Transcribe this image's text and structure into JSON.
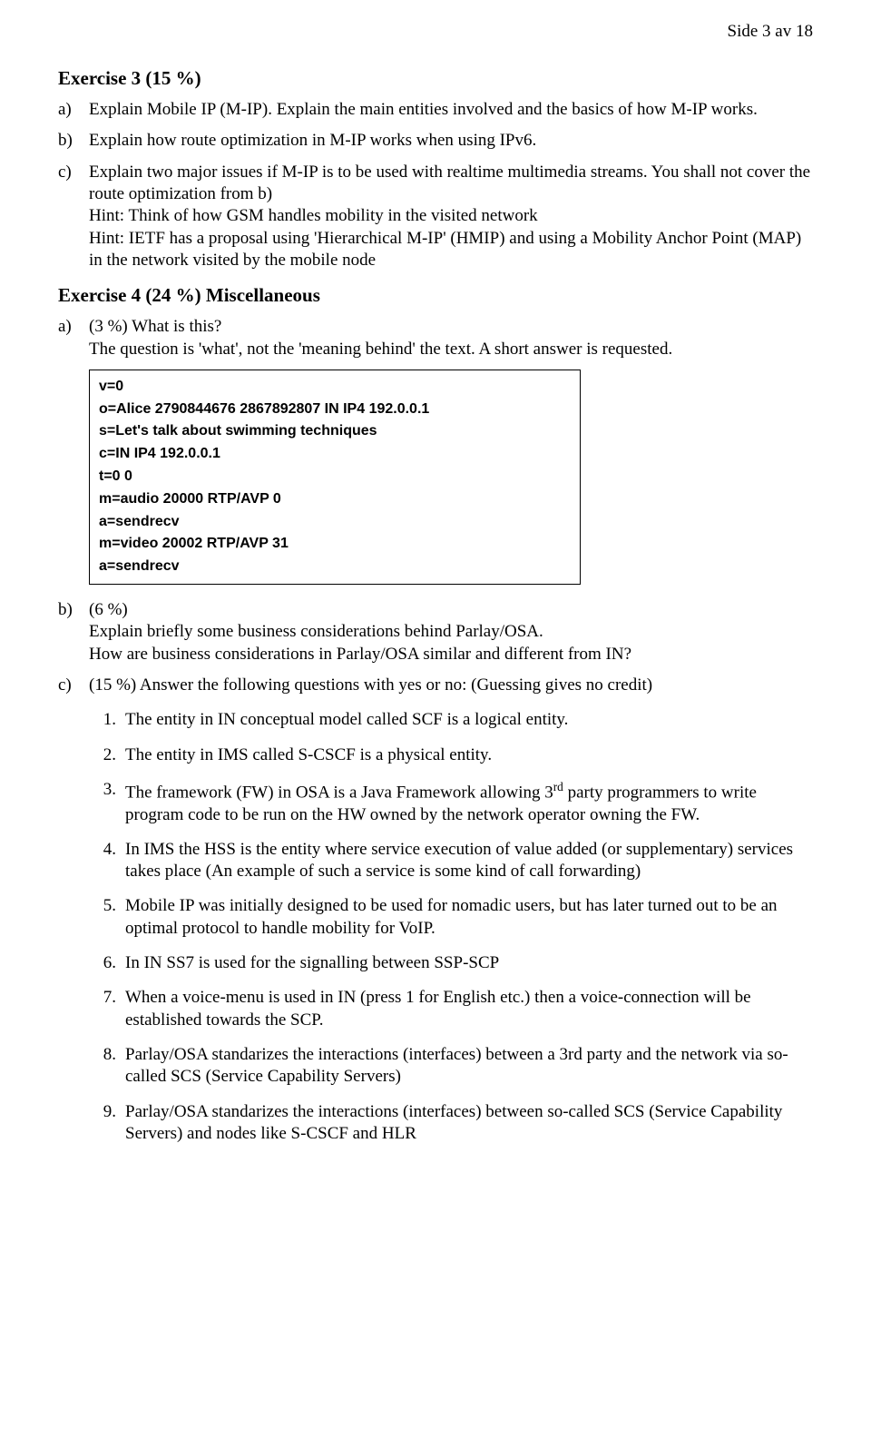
{
  "page_header": "Side 3 av 18",
  "ex3": {
    "title": "Exercise 3 (15 %)",
    "a": "Explain Mobile IP (M-IP). Explain the main entities involved and the basics of how M-IP works.",
    "b": "Explain how route optimization in M-IP works when using IPv6.",
    "c": "Explain two major issues if M-IP is to be used with realtime multimedia streams. You shall not cover the route optimization from b)\nHint: Think of how GSM handles mobility in the visited network\nHint: IETF has a proposal using 'Hierarchical M-IP' (HMIP) and using a Mobility Anchor Point (MAP) in the network visited by the mobile node"
  },
  "ex4": {
    "title": "Exercise 4 (24 %) Miscellaneous",
    "a_line1": "(3 %) What is this?",
    "a_line2": "The question is 'what', not the 'meaning behind' the text. A short answer is requested.",
    "codebox": "v=0\no=Alice 2790844676 2867892807 IN IP4 192.0.0.1\ns=Let's talk about swimming techniques\nc=IN IP4 192.0.0.1\nt=0 0\nm=audio 20000 RTP/AVP 0\na=sendrecv\nm=video 20002 RTP/AVP 31\na=sendrecv",
    "b_line1": "(6 %)",
    "b_line2": "Explain briefly some business considerations behind Parlay/OSA.",
    "b_line3": "How are business considerations in Parlay/OSA  similar and different from IN?",
    "c_intro": "(15 %) Answer the following questions with yes or no: (Guessing gives no credit)",
    "q1": "The entity in IN conceptual model called SCF is a logical entity.",
    "q2": "The entity in IMS called  S-CSCF is a physical entity.",
    "q3_a": "The framework (FW) in OSA is a Java Framework allowing 3",
    "q3_sup": "rd",
    "q3_b": " party programmers to write program code to be run on the HW owned by the network operator owning the FW.",
    "q4": "In IMS the HSS is the entity where service execution of value added (or supplementary) services takes place (An example of such a service is some kind of call forwarding)",
    "q5": "Mobile IP was initially designed to be used for nomadic users, but has later turned out to be an optimal protocol to handle mobility for VoIP.",
    "q6": "In IN SS7 is used for the signalling between SSP-SCP",
    "q7": "When a voice-menu is used in IN (press 1 for English etc.) then a voice-connection will be established towards the SCP.",
    "q8": "Parlay/OSA standarizes the interactions (interfaces) between a 3rd party and the network via so-called SCS (Service Capability Servers)",
    "q9": "Parlay/OSA standarizes the interactions (interfaces) between so-called SCS (Service Capability Servers) and nodes like S-CSCF and HLR"
  },
  "labels": {
    "a": "a)",
    "b": "b)",
    "c": "c)",
    "n1": "1.",
    "n2": "2.",
    "n3": "3.",
    "n4": "4.",
    "n5": "5.",
    "n6": "6.",
    "n7": "7.",
    "n8": "8.",
    "n9": "9."
  }
}
